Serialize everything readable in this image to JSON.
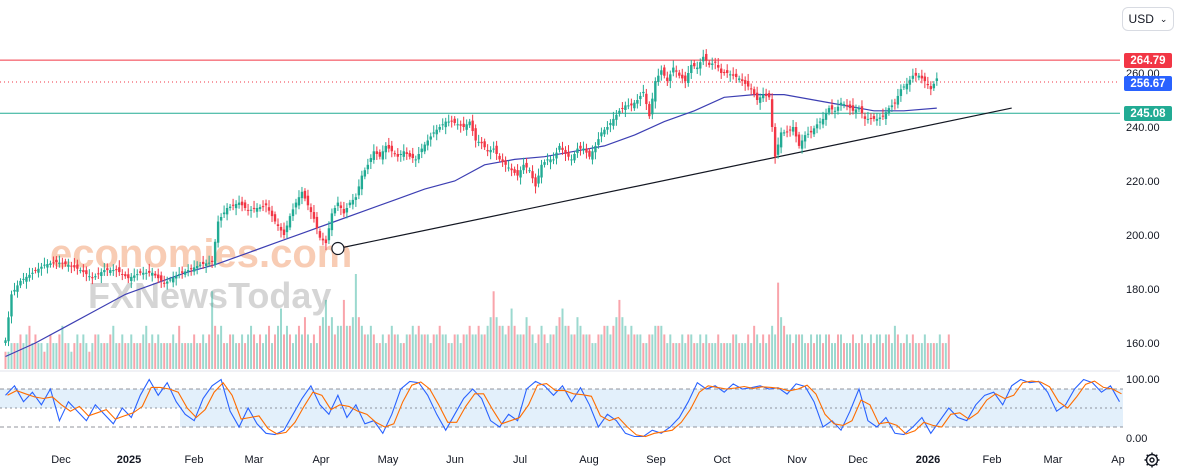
{
  "currency_selector": {
    "label": "USD",
    "icon": "chevron-down-icon"
  },
  "watermark": {
    "line1": "economies.com",
    "line2": "FXNewsToday"
  },
  "levels": {
    "resistance": {
      "label": "264.79",
      "value": 264.79,
      "color": "#f23645"
    },
    "current": {
      "label": "256.67",
      "value": 256.67,
      "color": "#2962ff"
    },
    "support": {
      "label": "245.08",
      "value": 245.08,
      "color": "#22ab94"
    }
  },
  "chart_data": {
    "type": "candlestick",
    "x_ticks": [
      "Dec",
      "2025",
      "Feb",
      "Mar",
      "Apr",
      "May",
      "Jun",
      "Jul",
      "Aug",
      "Sep",
      "Oct",
      "Nov",
      "Dec",
      "2026",
      "Feb",
      "Mar",
      "Ap"
    ],
    "y_ticks": [
      "260.00",
      "240.00",
      "220.00",
      "200.00",
      "180.00",
      "160.00"
    ],
    "ylim": [
      150,
      275
    ],
    "close_series": [
      [
        0,
        161
      ],
      [
        2,
        178
      ],
      [
        5,
        183
      ],
      [
        9,
        186
      ],
      [
        13,
        189
      ],
      [
        17,
        190
      ],
      [
        21,
        189
      ],
      [
        25,
        187
      ],
      [
        29,
        184
      ],
      [
        33,
        187
      ],
      [
        37,
        187
      ],
      [
        41,
        184
      ],
      [
        45,
        186
      ],
      [
        49,
        186
      ],
      [
        53,
        182
      ],
      [
        57,
        185
      ],
      [
        61,
        187
      ],
      [
        65,
        189
      ],
      [
        69,
        190
      ],
      [
        71,
        205
      ],
      [
        74,
        210
      ],
      [
        78,
        212
      ],
      [
        81,
        209
      ],
      [
        84,
        210
      ],
      [
        87,
        211
      ],
      [
        90,
        205
      ],
      [
        93,
        200
      ],
      [
        95,
        207
      ],
      [
        97,
        212
      ],
      [
        99,
        216
      ],
      [
        101,
        211
      ],
      [
        103,
        206
      ],
      [
        105,
        199
      ],
      [
        107,
        197
      ],
      [
        109,
        208
      ],
      [
        111,
        212
      ],
      [
        113,
        208
      ],
      [
        115,
        212
      ],
      [
        117,
        214
      ],
      [
        119,
        222
      ],
      [
        121,
        226
      ],
      [
        123,
        231
      ],
      [
        125,
        229
      ],
      [
        127,
        233
      ],
      [
        129,
        231
      ],
      [
        131,
        229
      ],
      [
        133,
        231
      ],
      [
        135,
        229
      ],
      [
        137,
        228
      ],
      [
        139,
        232
      ],
      [
        141,
        235
      ],
      [
        143,
        238
      ],
      [
        145,
        240
      ],
      [
        147,
        242
      ],
      [
        149,
        242
      ],
      [
        151,
        241
      ],
      [
        153,
        240
      ],
      [
        155,
        242
      ],
      [
        157,
        235
      ],
      [
        159,
        234
      ],
      [
        161,
        231
      ],
      [
        163,
        232
      ],
      [
        165,
        228
      ],
      [
        167,
        226
      ],
      [
        169,
        224
      ],
      [
        171,
        222
      ],
      [
        173,
        226
      ],
      [
        175,
        224
      ],
      [
        177,
        218
      ],
      [
        179,
        226
      ],
      [
        181,
        228
      ],
      [
        183,
        228
      ],
      [
        185,
        233
      ],
      [
        187,
        230
      ],
      [
        189,
        228
      ],
      [
        191,
        232
      ],
      [
        193,
        232
      ],
      [
        195,
        229
      ],
      [
        197,
        233
      ],
      [
        199,
        238
      ],
      [
        201,
        240
      ],
      [
        203,
        243
      ],
      [
        205,
        246
      ],
      [
        207,
        248
      ],
      [
        209,
        248
      ],
      [
        211,
        250
      ],
      [
        213,
        253
      ],
      [
        215,
        244
      ],
      [
        217,
        257
      ],
      [
        219,
        261
      ],
      [
        221,
        257
      ],
      [
        223,
        262
      ],
      [
        225,
        259
      ],
      [
        227,
        257
      ],
      [
        229,
        263
      ],
      [
        231,
        262
      ],
      [
        233,
        266
      ],
      [
        235,
        263
      ],
      [
        237,
        264
      ],
      [
        239,
        260
      ],
      [
        241,
        260
      ],
      [
        243,
        259
      ],
      [
        245,
        258
      ],
      [
        247,
        256
      ],
      [
        249,
        254
      ],
      [
        251,
        250
      ],
      [
        253,
        252
      ],
      [
        255,
        251
      ],
      [
        257,
        229
      ],
      [
        259,
        238
      ],
      [
        261,
        238
      ],
      [
        263,
        240
      ],
      [
        265,
        233
      ],
      [
        267,
        237
      ],
      [
        269,
        238
      ],
      [
        271,
        241
      ],
      [
        273,
        243
      ],
      [
        275,
        247
      ],
      [
        277,
        246
      ],
      [
        279,
        249
      ],
      [
        281,
        248
      ],
      [
        283,
        246
      ],
      [
        285,
        247
      ],
      [
        287,
        243
      ],
      [
        289,
        243
      ],
      [
        291,
        243
      ],
      [
        293,
        244
      ],
      [
        295,
        247
      ],
      [
        297,
        249
      ],
      [
        299,
        254
      ],
      [
        301,
        256
      ],
      [
        303,
        259
      ],
      [
        305,
        259
      ],
      [
        307,
        257
      ],
      [
        309,
        254
      ],
      [
        311,
        258
      ]
    ],
    "ma_series": [
      [
        0,
        155
      ],
      [
        10,
        160
      ],
      [
        20,
        166
      ],
      [
        30,
        172
      ],
      [
        40,
        178
      ],
      [
        50,
        182
      ],
      [
        60,
        186
      ],
      [
        70,
        189
      ],
      [
        80,
        193
      ],
      [
        90,
        197
      ],
      [
        100,
        201
      ],
      [
        110,
        205
      ],
      [
        120,
        209
      ],
      [
        130,
        213
      ],
      [
        140,
        217
      ],
      [
        150,
        220
      ],
      [
        160,
        226
      ],
      [
        170,
        228
      ],
      [
        180,
        229
      ],
      [
        190,
        231
      ],
      [
        200,
        233
      ],
      [
        210,
        237
      ],
      [
        220,
        242
      ],
      [
        230,
        246
      ],
      [
        240,
        251
      ],
      [
        250,
        252
      ],
      [
        260,
        252
      ],
      [
        270,
        250
      ],
      [
        280,
        248
      ],
      [
        290,
        246
      ],
      [
        300,
        246
      ],
      [
        311,
        247
      ]
    ],
    "trendline": {
      "from": [
        111,
        195
      ],
      "to": [
        336,
        247
      ]
    },
    "volume": [
      2,
      2,
      3,
      3,
      3,
      4,
      3,
      4,
      5,
      3,
      4,
      3,
      3,
      2,
      3,
      4,
      3,
      3,
      4,
      5,
      3,
      3,
      2,
      3,
      4,
      3,
      4,
      3,
      2,
      3,
      4,
      4,
      3,
      3,
      3,
      4,
      5,
      3,
      3,
      4,
      3,
      3,
      4,
      3,
      3,
      3,
      4,
      5,
      3,
      4,
      3,
      4,
      3,
      3,
      3,
      3,
      4,
      3,
      5,
      3,
      3,
      3,
      3,
      4,
      3,
      3,
      4,
      3,
      4,
      9,
      5,
      4,
      5,
      3,
      3,
      4,
      4,
      3,
      3,
      4,
      3,
      4,
      5,
      4,
      3,
      4,
      3,
      4,
      5,
      3,
      4,
      5,
      7,
      4,
      5,
      4,
      3,
      4,
      5,
      4,
      6,
      4,
      3,
      4,
      3,
      5,
      6,
      8,
      5,
      6,
      4,
      5,
      5,
      8,
      5,
      5,
      6,
      11,
      6,
      5,
      4,
      4,
      5,
      4,
      3,
      3,
      4,
      3,
      4,
      5,
      4,
      4,
      3,
      3,
      4,
      4,
      5,
      4,
      5,
      4,
      4,
      4,
      3,
      4,
      4,
      5,
      4,
      4,
      3,
      3,
      4,
      4,
      3,
      4,
      4,
      5,
      4,
      4,
      5,
      4,
      4,
      5,
      6,
      9,
      6,
      5,
      5,
      4,
      5,
      7,
      5,
      4,
      4,
      4,
      6,
      5,
      4,
      3,
      4,
      5,
      4,
      3,
      4,
      4,
      5,
      6,
      7,
      5,
      5,
      4,
      4,
      6,
      5,
      4,
      4,
      4,
      3,
      3,
      4,
      4,
      5,
      5,
      4,
      5,
      6,
      8,
      6,
      5,
      4,
      5,
      4,
      4,
      4,
      3,
      3,
      4,
      4,
      5,
      5,
      5,
      4,
      3,
      4,
      3,
      3,
      3,
      4,
      3,
      4,
      4,
      3,
      3,
      4,
      3,
      4,
      3,
      3,
      3,
      4,
      3,
      3,
      3,
      3,
      4,
      4,
      3,
      3,
      3,
      4,
      3,
      5,
      4,
      3,
      4,
      3,
      4,
      5,
      4,
      10,
      6,
      5,
      4,
      4,
      3,
      4,
      4,
      4,
      3,
      3,
      4,
      3,
      4,
      4,
      3,
      4,
      4,
      3,
      3,
      4,
      4,
      3,
      3,
      3,
      4,
      3,
      3,
      4,
      3,
      3,
      4,
      3,
      4,
      4,
      3,
      4,
      4,
      3,
      5,
      4,
      3,
      3,
      4,
      3,
      4,
      3,
      3,
      3,
      4,
      3,
      3,
      3,
      3,
      4,
      3,
      3,
      4
    ],
    "oscillator": {
      "y_ticks": [
        "100.00",
        "0.00"
      ],
      "ylim": [
        0,
        100
      ],
      "upper_band": 80,
      "lower_band": 20,
      "middle": 50,
      "k_series": [
        [
          0,
          70
        ],
        [
          3,
          85
        ],
        [
          6,
          60
        ],
        [
          9,
          75
        ],
        [
          12,
          55
        ],
        [
          15,
          80
        ],
        [
          18,
          30
        ],
        [
          21,
          60
        ],
        [
          24,
          45
        ],
        [
          27,
          30
        ],
        [
          30,
          55
        ],
        [
          33,
          40
        ],
        [
          36,
          25
        ],
        [
          39,
          50
        ],
        [
          42,
          35
        ],
        [
          45,
          70
        ],
        [
          48,
          95
        ],
        [
          51,
          70
        ],
        [
          54,
          90
        ],
        [
          57,
          60
        ],
        [
          60,
          40
        ],
        [
          63,
          30
        ],
        [
          66,
          65
        ],
        [
          69,
          85
        ],
        [
          72,
          95
        ],
        [
          75,
          45
        ],
        [
          78,
          20
        ],
        [
          81,
          50
        ],
        [
          84,
          25
        ],
        [
          87,
          10
        ],
        [
          90,
          8
        ],
        [
          93,
          15
        ],
        [
          96,
          40
        ],
        [
          99,
          65
        ],
        [
          102,
          85
        ],
        [
          105,
          55
        ],
        [
          108,
          40
        ],
        [
          111,
          70
        ],
        [
          114,
          35
        ],
        [
          117,
          55
        ],
        [
          120,
          25
        ],
        [
          123,
          30
        ],
        [
          126,
          10
        ],
        [
          129,
          40
        ],
        [
          132,
          80
        ],
        [
          135,
          92
        ],
        [
          138,
          90
        ],
        [
          141,
          70
        ],
        [
          144,
          40
        ],
        [
          147,
          15
        ],
        [
          150,
          40
        ],
        [
          153,
          65
        ],
        [
          156,
          80
        ],
        [
          159,
          65
        ],
        [
          162,
          30
        ],
        [
          165,
          20
        ],
        [
          168,
          40
        ],
        [
          171,
          30
        ],
        [
          174,
          80
        ],
        [
          177,
          92
        ],
        [
          180,
          85
        ],
        [
          183,
          70
        ],
        [
          186,
          85
        ],
        [
          189,
          60
        ],
        [
          192,
          82
        ],
        [
          195,
          55
        ],
        [
          198,
          20
        ],
        [
          201,
          40
        ],
        [
          204,
          30
        ],
        [
          207,
          10
        ],
        [
          210,
          5
        ],
        [
          213,
          5
        ],
        [
          216,
          15
        ],
        [
          219,
          10
        ],
        [
          222,
          20
        ],
        [
          225,
          35
        ],
        [
          228,
          60
        ],
        [
          231,
          90
        ],
        [
          234,
          80
        ],
        [
          237,
          85
        ],
        [
          240,
          75
        ],
        [
          243,
          88
        ],
        [
          246,
          80
        ],
        [
          249,
          82
        ],
        [
          252,
          85
        ],
        [
          255,
          80
        ],
        [
          258,
          82
        ],
        [
          261,
          72
        ],
        [
          264,
          88
        ],
        [
          267,
          84
        ],
        [
          270,
          60
        ],
        [
          273,
          20
        ],
        [
          276,
          30
        ],
        [
          279,
          15
        ],
        [
          282,
          45
        ],
        [
          285,
          80
        ],
        [
          288,
          30
        ],
        [
          291,
          20
        ],
        [
          294,
          35
        ],
        [
          297,
          10
        ],
        [
          300,
          8
        ],
        [
          303,
          20
        ],
        [
          306,
          35
        ],
        [
          309,
          10
        ],
        [
          312,
          30
        ],
        [
          315,
          50
        ],
        [
          318,
          35
        ],
        [
          321,
          30
        ],
        [
          324,
          55
        ],
        [
          327,
          70
        ],
        [
          330,
          75
        ],
        [
          333,
          55
        ],
        [
          336,
          85
        ],
        [
          339,
          95
        ],
        [
          342,
          90
        ],
        [
          345,
          92
        ],
        [
          348,
          75
        ],
        [
          351,
          45
        ],
        [
          354,
          55
        ],
        [
          357,
          80
        ],
        [
          360,
          95
        ],
        [
          363,
          90
        ],
        [
          366,
          75
        ],
        [
          369,
          85
        ],
        [
          372,
          60
        ]
      ]
    }
  }
}
